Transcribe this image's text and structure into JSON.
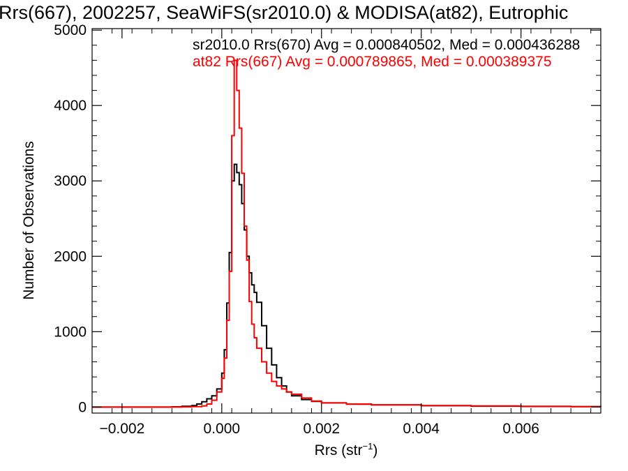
{
  "chart_data": {
    "type": "line",
    "title": "Rrs(667), 2002257, SeaWiFS(sr2010.0) & MODISA(at82), Eutrophic",
    "xlabel": "Rrs (str",
    "xlabel_superscript": "−1",
    "xlabel_suffix": ")",
    "ylabel": "Number of Observations",
    "xlim": [
      -0.0026,
      0.0076
    ],
    "ylim": [
      -80,
      5020
    ],
    "x_ticks": [
      -0.002,
      0.0,
      0.002,
      0.004,
      0.006
    ],
    "x_tick_labels": [
      "−0.002",
      "0.000",
      "0.002",
      "0.004",
      "0.006"
    ],
    "y_ticks": [
      0,
      1000,
      2000,
      3000,
      4000,
      5000
    ],
    "y_tick_labels": [
      "0",
      "1000",
      "2000",
      "3000",
      "4000",
      "5000"
    ],
    "grid": false,
    "legend_placement": "top-right",
    "series": [
      {
        "name": "sr2010.0 Rrs(670) Avg = 0.000840502, Med = 0.000436288",
        "color": "#000000",
        "x": [
          -0.0026,
          -0.001,
          -0.0008,
          -0.0006,
          -0.0005,
          -0.0004,
          -0.0003,
          -0.0002,
          -0.0001,
          0.0,
          5e-05,
          0.0001,
          0.00015,
          0.0002,
          0.00025,
          0.0003,
          0.00035,
          0.0004,
          0.00045,
          0.0005,
          0.00055,
          0.0006,
          0.00065,
          0.0007,
          0.0008,
          0.0009,
          0.001,
          0.0011,
          0.0012,
          0.0013,
          0.0014,
          0.0016,
          0.0018,
          0.002,
          0.0025,
          0.003,
          0.004,
          0.005,
          0.006,
          0.007,
          0.0076
        ],
        "y": [
          0,
          3,
          10,
          20,
          40,
          70,
          110,
          150,
          240,
          450,
          760,
          1380,
          2050,
          3000,
          3220,
          3110,
          2950,
          2700,
          2350,
          2000,
          1780,
          1620,
          1520,
          1390,
          1080,
          780,
          560,
          390,
          280,
          200,
          150,
          100,
          75,
          55,
          38,
          28,
          18,
          12,
          8,
          5,
          3
        ]
      },
      {
        "name": "at82 Rrs(667) Avg = 0.000789865, Med = 0.000389375",
        "color": "#ff0000",
        "x": [
          -0.0026,
          -0.0008,
          -0.0006,
          -0.0004,
          -0.0003,
          -0.0002,
          -0.0001,
          0.0,
          5e-05,
          0.0001,
          0.00015,
          0.0002,
          0.00025,
          0.0003,
          0.00035,
          0.0004,
          0.00045,
          0.0005,
          0.00055,
          0.0006,
          0.00065,
          0.0007,
          0.0008,
          0.0009,
          0.001,
          0.0011,
          0.0012,
          0.0013,
          0.0014,
          0.0016,
          0.0018,
          0.002,
          0.0025,
          0.003,
          0.004,
          0.005,
          0.006,
          0.007,
          0.0076
        ],
        "y": [
          0,
          2,
          5,
          15,
          40,
          90,
          200,
          380,
          650,
          1150,
          1800,
          3600,
          4600,
          4200,
          3700,
          3100,
          2400,
          1950,
          1400,
          1100,
          920,
          780,
          600,
          450,
          340,
          280,
          240,
          200,
          170,
          120,
          80,
          55,
          40,
          30,
          20,
          14,
          10,
          6,
          4
        ]
      }
    ]
  }
}
